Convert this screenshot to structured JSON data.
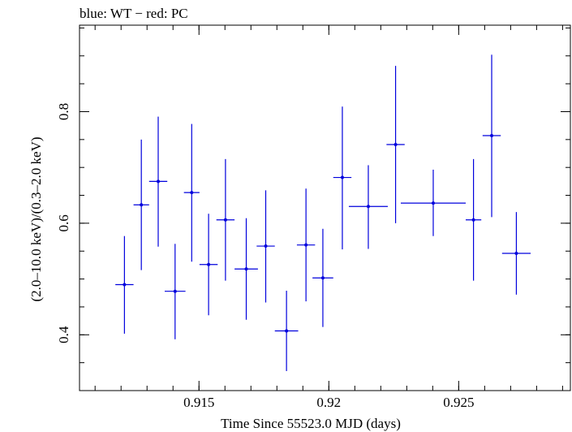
{
  "chart_data": {
    "type": "scatter",
    "title": "blue: WT − red: PC",
    "xlabel": "Time Since 55523.0 MJD (days)",
    "ylabel": "(2.0–10.0 keV)/(0.3–2.0 keV)",
    "xlim": [
      0.9104,
      0.9293
    ],
    "ylim": [
      0.3,
      0.955
    ],
    "x_ticks": [
      {
        "value": 0.915,
        "label": "0.915"
      },
      {
        "value": 0.92,
        "label": "0.92"
      },
      {
        "value": 0.925,
        "label": "0.925"
      }
    ],
    "y_ticks": [
      {
        "value": 0.4,
        "label": "0.4"
      },
      {
        "value": 0.6,
        "label": "0.6"
      },
      {
        "value": 0.8,
        "label": "0.8"
      }
    ],
    "x_minor_step": 0.001,
    "y_minor_step": 0.05,
    "grid": false,
    "series": [
      {
        "color": "#0000dd",
        "points": [
          {
            "x": 0.91213,
            "xerr": 0.00035,
            "y": 0.49,
            "ylo": 0.402,
            "yhi": 0.577
          },
          {
            "x": 0.91278,
            "xerr": 0.0003,
            "y": 0.633,
            "ylo": 0.516,
            "yhi": 0.75
          },
          {
            "x": 0.91343,
            "xerr": 0.00035,
            "y": 0.675,
            "ylo": 0.558,
            "yhi": 0.791
          },
          {
            "x": 0.91408,
            "xerr": 0.0004,
            "y": 0.478,
            "ylo": 0.392,
            "yhi": 0.563
          },
          {
            "x": 0.91472,
            "xerr": 0.0003,
            "y": 0.655,
            "ylo": 0.531,
            "yhi": 0.778
          },
          {
            "x": 0.91537,
            "xerr": 0.00035,
            "y": 0.526,
            "ylo": 0.435,
            "yhi": 0.617
          },
          {
            "x": 0.91602,
            "xerr": 0.00035,
            "y": 0.606,
            "ylo": 0.497,
            "yhi": 0.715
          },
          {
            "x": 0.91682,
            "xerr": 0.00045,
            "y": 0.518,
            "ylo": 0.427,
            "yhi": 0.609
          },
          {
            "x": 0.91757,
            "xerr": 0.00035,
            "y": 0.559,
            "ylo": 0.458,
            "yhi": 0.659
          },
          {
            "x": 0.91837,
            "xerr": 0.00045,
            "y": 0.407,
            "ylo": 0.335,
            "yhi": 0.479
          },
          {
            "x": 0.91912,
            "xerr": 0.00035,
            "y": 0.561,
            "ylo": 0.46,
            "yhi": 0.662
          },
          {
            "x": 0.91977,
            "xerr": 0.0004,
            "y": 0.502,
            "ylo": 0.414,
            "yhi": 0.59
          },
          {
            "x": 0.92052,
            "xerr": 0.00035,
            "y": 0.682,
            "ylo": 0.553,
            "yhi": 0.809
          },
          {
            "x": 0.92152,
            "xerr": 0.00075,
            "y": 0.63,
            "ylo": 0.554,
            "yhi": 0.704
          },
          {
            "x": 0.92257,
            "xerr": 0.00035,
            "y": 0.741,
            "ylo": 0.6,
            "yhi": 0.882
          },
          {
            "x": 0.92402,
            "xerr": 0.00125,
            "y": 0.636,
            "ylo": 0.577,
            "yhi": 0.696
          },
          {
            "x": 0.92557,
            "xerr": 0.0003,
            "y": 0.606,
            "ylo": 0.497,
            "yhi": 0.715
          },
          {
            "x": 0.92627,
            "xerr": 0.00035,
            "y": 0.757,
            "ylo": 0.611,
            "yhi": 0.902
          },
          {
            "x": 0.92722,
            "xerr": 0.00055,
            "y": 0.546,
            "ylo": 0.472,
            "yhi": 0.62
          }
        ]
      }
    ]
  }
}
